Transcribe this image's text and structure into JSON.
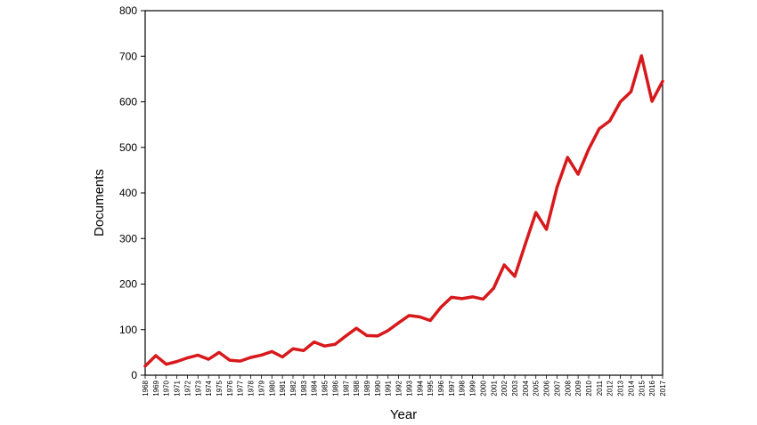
{
  "chart_data": {
    "type": "line",
    "title": "",
    "xlabel": "Year",
    "ylabel": "Documents",
    "ylim": [
      0,
      800
    ],
    "yticks": [
      0,
      100,
      200,
      300,
      400,
      500,
      600,
      700,
      800
    ],
    "grid": false,
    "legend": "none",
    "series": [
      {
        "color": "#d7191c",
        "x": [
          "1968",
          "1969",
          "1970",
          "1971",
          "1972",
          "1973",
          "1974",
          "1975",
          "1976",
          "1977",
          "1978",
          "1979",
          "1980",
          "1981",
          "1982",
          "1983",
          "1984",
          "1985",
          "1986",
          "1987",
          "1988",
          "1989",
          "1990",
          "1991",
          "1992",
          "1993",
          "1994",
          "1995",
          "1996",
          "1997",
          "1998",
          "1999",
          "2000",
          "2001",
          "2002",
          "2003",
          "2004",
          "2005",
          "2006",
          "2007",
          "2008",
          "2009",
          "2010",
          "2011",
          "2012",
          "2013",
          "2014",
          "2015",
          "2016",
          "2017"
        ],
        "values": [
          20,
          43,
          24,
          30,
          38,
          44,
          35,
          50,
          33,
          31,
          39,
          44,
          52,
          40,
          58,
          54,
          73,
          64,
          68,
          86,
          103,
          87,
          86,
          98,
          115,
          131,
          128,
          120,
          149,
          171,
          168,
          172,
          167,
          191,
          242,
          217,
          288,
          357,
          320,
          412,
          478,
          441,
          496,
          541,
          558,
          600,
          622,
          701,
          601,
          645
        ]
      }
    ]
  }
}
